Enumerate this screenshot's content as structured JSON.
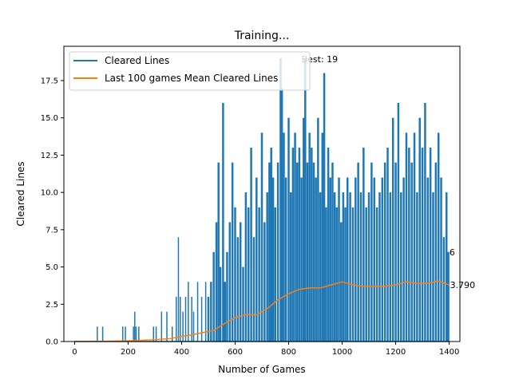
{
  "chart_data": {
    "type": "line",
    "title": "Training...",
    "xlabel": "Number of Games",
    "ylabel": "Cleared Lines",
    "xlim": [
      -40,
      1440
    ],
    "ylim": [
      0,
      19.8
    ],
    "xticks": [
      0,
      200,
      400,
      600,
      800,
      1000,
      1200,
      1400
    ],
    "yticks": [
      0.0,
      2.5,
      5.0,
      7.5,
      10.0,
      12.5,
      15.0,
      17.5
    ],
    "ytick_labels": [
      "0.0",
      "2.5",
      "5.0",
      "7.5",
      "10.0",
      "12.5",
      "15.0",
      "17.5"
    ],
    "grid": false,
    "legend_position": "upper-left",
    "series": [
      {
        "name": "Cleared Lines",
        "color": "#1f77b4",
        "spikes": [
          [
            85,
            1
          ],
          [
            105,
            1
          ],
          [
            180,
            1
          ],
          [
            190,
            1
          ],
          [
            220,
            1
          ],
          [
            225,
            2
          ],
          [
            230,
            1
          ],
          [
            240,
            1
          ],
          [
            295,
            1
          ],
          [
            305,
            1
          ],
          [
            325,
            2
          ],
          [
            345,
            2
          ],
          [
            365,
            1
          ],
          [
            380,
            3
          ],
          [
            388,
            7
          ],
          [
            395,
            3
          ],
          [
            405,
            2
          ],
          [
            415,
            3
          ],
          [
            425,
            4
          ],
          [
            438,
            3
          ],
          [
            445,
            2
          ],
          [
            460,
            4
          ],
          [
            475,
            3
          ],
          [
            490,
            4
          ],
          [
            500,
            3
          ],
          [
            510,
            4
          ],
          [
            520,
            6
          ],
          [
            530,
            8
          ],
          [
            538,
            12
          ],
          [
            545,
            5
          ],
          [
            555,
            16
          ],
          [
            562,
            4
          ],
          [
            570,
            6
          ],
          [
            580,
            8
          ],
          [
            590,
            12
          ],
          [
            600,
            9
          ],
          [
            610,
            7
          ],
          [
            620,
            8
          ],
          [
            630,
            5
          ],
          [
            640,
            10
          ],
          [
            650,
            9
          ],
          [
            660,
            13
          ],
          [
            670,
            7
          ],
          [
            680,
            11
          ],
          [
            690,
            9
          ],
          [
            700,
            14
          ],
          [
            710,
            8
          ],
          [
            720,
            10
          ],
          [
            728,
            12
          ],
          [
            735,
            13
          ],
          [
            742,
            11
          ],
          [
            750,
            9
          ],
          [
            760,
            12
          ],
          [
            770,
            19
          ],
          [
            775,
            17
          ],
          [
            782,
            14
          ],
          [
            790,
            11
          ],
          [
            800,
            15
          ],
          [
            808,
            10
          ],
          [
            816,
            13
          ],
          [
            824,
            14
          ],
          [
            832,
            12
          ],
          [
            840,
            13
          ],
          [
            848,
            11
          ],
          [
            856,
            15
          ],
          [
            862,
            19
          ],
          [
            870,
            12
          ],
          [
            878,
            14
          ],
          [
            886,
            13
          ],
          [
            894,
            12
          ],
          [
            902,
            11
          ],
          [
            910,
            15
          ],
          [
            918,
            10
          ],
          [
            926,
            14
          ],
          [
            933,
            18
          ],
          [
            940,
            9
          ],
          [
            948,
            13
          ],
          [
            956,
            11
          ],
          [
            964,
            12
          ],
          [
            972,
            10
          ],
          [
            980,
            9
          ],
          [
            988,
            11
          ],
          [
            996,
            8
          ],
          [
            1004,
            10
          ],
          [
            1012,
            9
          ],
          [
            1020,
            11
          ],
          [
            1030,
            10
          ],
          [
            1040,
            9
          ],
          [
            1050,
            11
          ],
          [
            1060,
            12
          ],
          [
            1070,
            10
          ],
          [
            1080,
            13
          ],
          [
            1090,
            9
          ],
          [
            1100,
            10
          ],
          [
            1110,
            12
          ],
          [
            1120,
            11
          ],
          [
            1130,
            9
          ],
          [
            1140,
            10
          ],
          [
            1150,
            11
          ],
          [
            1160,
            12
          ],
          [
            1170,
            13
          ],
          [
            1180,
            10
          ],
          [
            1190,
            15
          ],
          [
            1200,
            12
          ],
          [
            1210,
            16
          ],
          [
            1220,
            10
          ],
          [
            1230,
            11
          ],
          [
            1240,
            14
          ],
          [
            1250,
            13
          ],
          [
            1260,
            12
          ],
          [
            1270,
            14
          ],
          [
            1280,
            10
          ],
          [
            1290,
            15
          ],
          [
            1300,
            13
          ],
          [
            1310,
            16
          ],
          [
            1320,
            11
          ],
          [
            1330,
            13
          ],
          [
            1340,
            10
          ],
          [
            1350,
            12
          ],
          [
            1360,
            14
          ],
          [
            1370,
            11
          ],
          [
            1380,
            7
          ],
          [
            1390,
            10
          ],
          [
            1397,
            6
          ]
        ]
      },
      {
        "name": "Last 100 games Mean Cleared Lines",
        "color": "#ff7f0e",
        "points": [
          [
            0,
            0
          ],
          [
            100,
            0.01
          ],
          [
            200,
            0.05
          ],
          [
            300,
            0.12
          ],
          [
            360,
            0.2
          ],
          [
            400,
            0.35
          ],
          [
            440,
            0.45
          ],
          [
            480,
            0.6
          ],
          [
            520,
            0.75
          ],
          [
            560,
            1.2
          ],
          [
            600,
            1.6
          ],
          [
            640,
            1.8
          ],
          [
            680,
            1.8
          ],
          [
            720,
            2.2
          ],
          [
            760,
            2.8
          ],
          [
            800,
            3.2
          ],
          [
            840,
            3.5
          ],
          [
            880,
            3.6
          ],
          [
            920,
            3.6
          ],
          [
            960,
            3.8
          ],
          [
            1000,
            4.0
          ],
          [
            1040,
            3.8
          ],
          [
            1080,
            3.7
          ],
          [
            1120,
            3.7
          ],
          [
            1160,
            3.7
          ],
          [
            1200,
            3.8
          ],
          [
            1240,
            4.0
          ],
          [
            1280,
            3.9
          ],
          [
            1320,
            3.9
          ],
          [
            1360,
            4.05
          ],
          [
            1400,
            3.79
          ]
        ]
      }
    ],
    "annotations": [
      {
        "text": "Best: 19",
        "x": 860,
        "y": 19
      },
      {
        "text": "6",
        "x": 1398,
        "y": 6
      },
      {
        "text": "3.790",
        "x": 1400,
        "y": 3.79
      }
    ]
  }
}
